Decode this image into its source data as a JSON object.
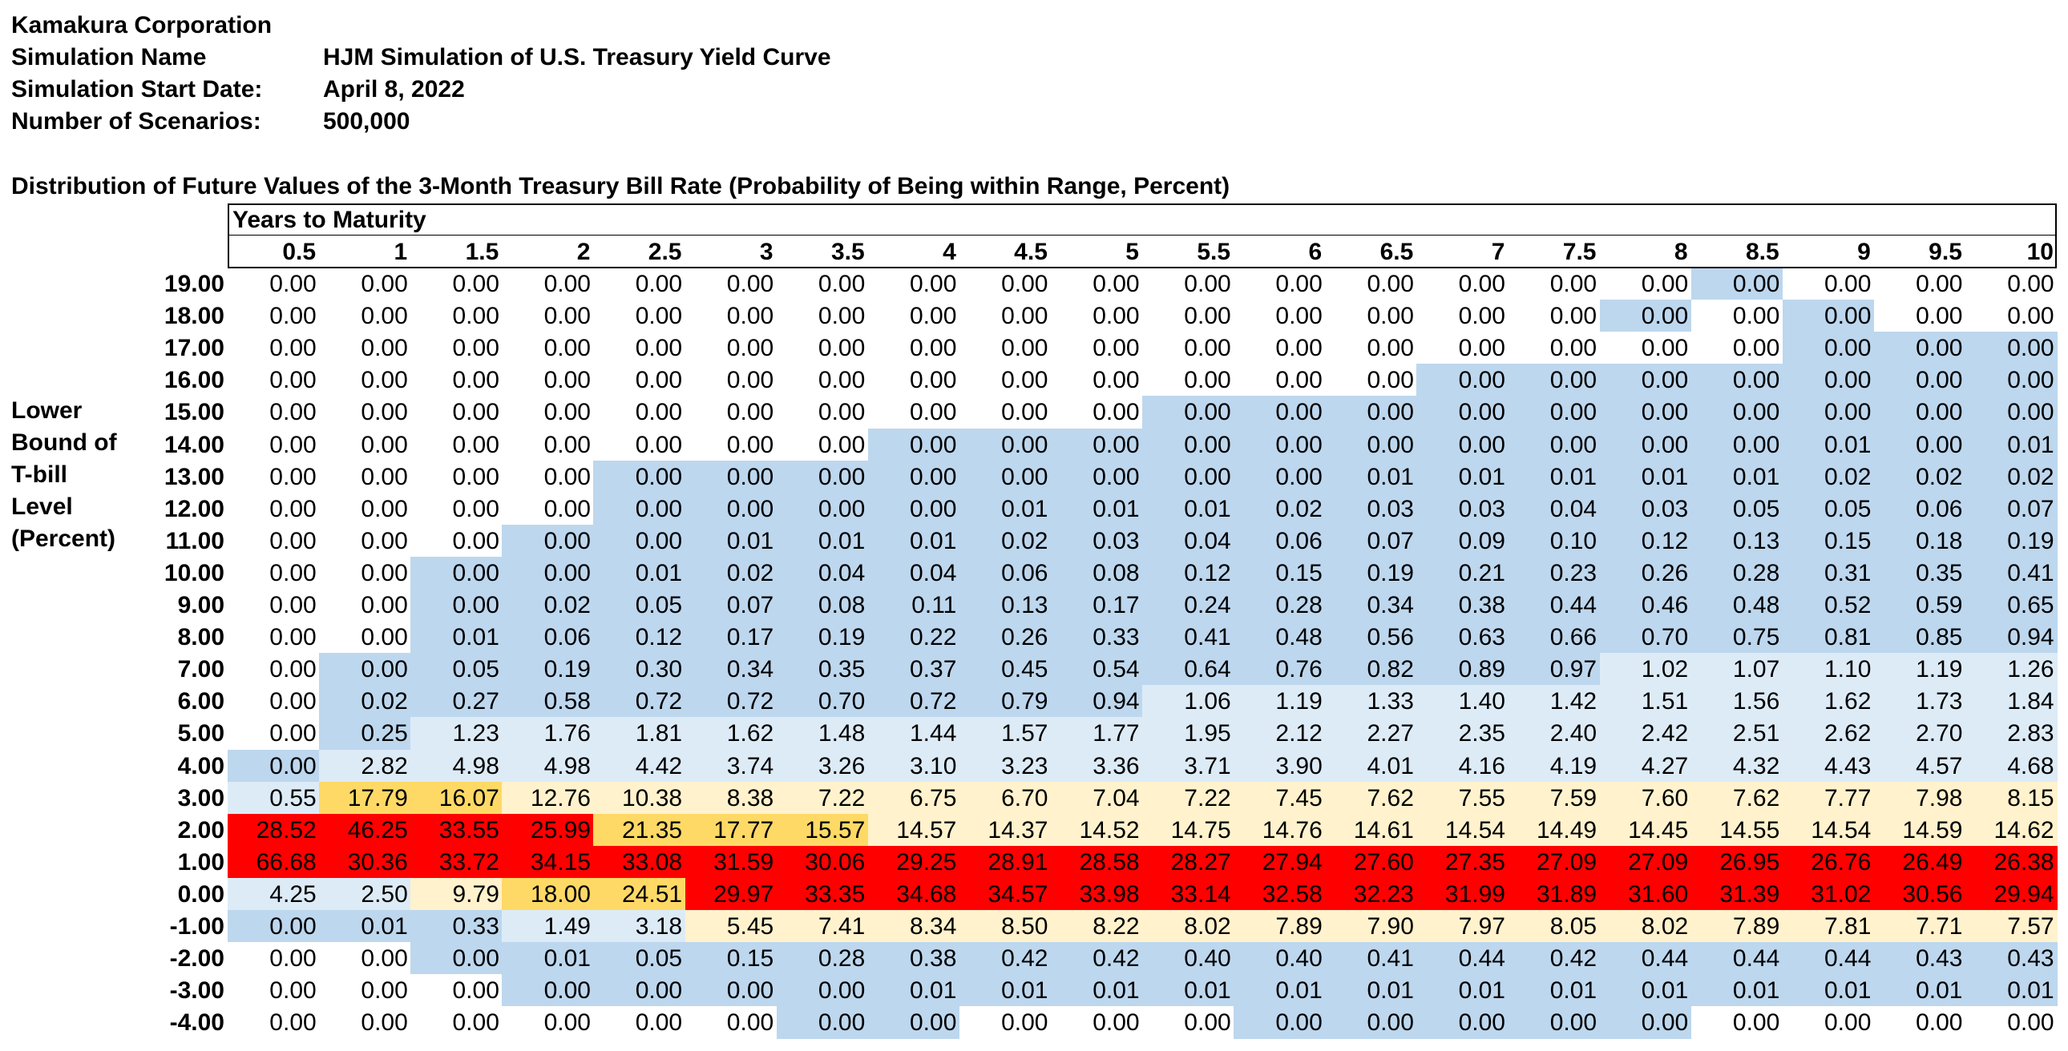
{
  "header": {
    "company": "Kamakura Corporation",
    "sim_name_label": "Simulation Name",
    "sim_name": "HJM Simulation of U.S. Treasury Yield Curve",
    "start_label": "Simulation Start Date:",
    "start_date": "April 8, 2022",
    "scen_label": "Number of Scenarios:",
    "scenarios": "500,000"
  },
  "table_title": "Distribution of Future Values of the 3-Month Treasury Bill Rate (Probability of Being within Range, Percent)",
  "years_label": "Years to Maturity",
  "row_axis_label": [
    "Lower",
    "Bound of",
    "T-bill",
    "Level",
    "(Percent)"
  ],
  "colors": {
    "none": "#ffffff",
    "blue": "#bdd7ee",
    "lightblue": "#ddebf7",
    "cream": "#fff2cc",
    "gold": "#ffd966",
    "red": "#ff0000"
  },
  "columns": [
    "0.5",
    "1",
    "1.5",
    "2",
    "2.5",
    "3",
    "3.5",
    "4",
    "4.5",
    "5",
    "5.5",
    "6",
    "6.5",
    "7",
    "7.5",
    "8",
    "8.5",
    "9",
    "9.5",
    "10"
  ],
  "rows": [
    {
      "label": "19.00",
      "values": [
        "0.00",
        "0.00",
        "0.00",
        "0.00",
        "0.00",
        "0.00",
        "0.00",
        "0.00",
        "0.00",
        "0.00",
        "0.00",
        "0.00",
        "0.00",
        "0.00",
        "0.00",
        "0.00",
        "0.00",
        "0.00",
        "0.00",
        "0.00"
      ],
      "shade": [
        "W",
        "W",
        "W",
        "W",
        "W",
        "W",
        "W",
        "W",
        "W",
        "W",
        "W",
        "W",
        "W",
        "W",
        "W",
        "W",
        "B",
        "W",
        "W",
        "W"
      ]
    },
    {
      "label": "18.00",
      "values": [
        "0.00",
        "0.00",
        "0.00",
        "0.00",
        "0.00",
        "0.00",
        "0.00",
        "0.00",
        "0.00",
        "0.00",
        "0.00",
        "0.00",
        "0.00",
        "0.00",
        "0.00",
        "0.00",
        "0.00",
        "0.00",
        "0.00",
        "0.00"
      ],
      "shade": [
        "W",
        "W",
        "W",
        "W",
        "W",
        "W",
        "W",
        "W",
        "W",
        "W",
        "W",
        "W",
        "W",
        "W",
        "W",
        "B",
        "W",
        "B",
        "W",
        "W"
      ]
    },
    {
      "label": "17.00",
      "values": [
        "0.00",
        "0.00",
        "0.00",
        "0.00",
        "0.00",
        "0.00",
        "0.00",
        "0.00",
        "0.00",
        "0.00",
        "0.00",
        "0.00",
        "0.00",
        "0.00",
        "0.00",
        "0.00",
        "0.00",
        "0.00",
        "0.00",
        "0.00"
      ],
      "shade": [
        "W",
        "W",
        "W",
        "W",
        "W",
        "W",
        "W",
        "W",
        "W",
        "W",
        "W",
        "W",
        "W",
        "W",
        "W",
        "W",
        "W",
        "B",
        "B",
        "B"
      ]
    },
    {
      "label": "16.00",
      "values": [
        "0.00",
        "0.00",
        "0.00",
        "0.00",
        "0.00",
        "0.00",
        "0.00",
        "0.00",
        "0.00",
        "0.00",
        "0.00",
        "0.00",
        "0.00",
        "0.00",
        "0.00",
        "0.00",
        "0.00",
        "0.00",
        "0.00",
        "0.00"
      ],
      "shade": [
        "W",
        "W",
        "W",
        "W",
        "W",
        "W",
        "W",
        "W",
        "W",
        "W",
        "W",
        "W",
        "W",
        "B",
        "B",
        "B",
        "B",
        "B",
        "B",
        "B"
      ]
    },
    {
      "label": "15.00",
      "values": [
        "0.00",
        "0.00",
        "0.00",
        "0.00",
        "0.00",
        "0.00",
        "0.00",
        "0.00",
        "0.00",
        "0.00",
        "0.00",
        "0.00",
        "0.00",
        "0.00",
        "0.00",
        "0.00",
        "0.00",
        "0.00",
        "0.00",
        "0.00"
      ],
      "shade": [
        "W",
        "W",
        "W",
        "W",
        "W",
        "W",
        "W",
        "W",
        "W",
        "W",
        "B",
        "B",
        "B",
        "B",
        "B",
        "B",
        "B",
        "B",
        "B",
        "B"
      ]
    },
    {
      "label": "14.00",
      "values": [
        "0.00",
        "0.00",
        "0.00",
        "0.00",
        "0.00",
        "0.00",
        "0.00",
        "0.00",
        "0.00",
        "0.00",
        "0.00",
        "0.00",
        "0.00",
        "0.00",
        "0.00",
        "0.00",
        "0.00",
        "0.01",
        "0.00",
        "0.01"
      ],
      "shade": [
        "W",
        "W",
        "W",
        "W",
        "W",
        "W",
        "W",
        "B",
        "B",
        "B",
        "B",
        "B",
        "B",
        "B",
        "B",
        "B",
        "B",
        "B",
        "B",
        "B"
      ]
    },
    {
      "label": "13.00",
      "values": [
        "0.00",
        "0.00",
        "0.00",
        "0.00",
        "0.00",
        "0.00",
        "0.00",
        "0.00",
        "0.00",
        "0.00",
        "0.00",
        "0.00",
        "0.01",
        "0.01",
        "0.01",
        "0.01",
        "0.01",
        "0.02",
        "0.02",
        "0.02"
      ],
      "shade": [
        "W",
        "W",
        "W",
        "W",
        "B",
        "B",
        "B",
        "B",
        "B",
        "B",
        "B",
        "B",
        "B",
        "B",
        "B",
        "B",
        "B",
        "B",
        "B",
        "B"
      ]
    },
    {
      "label": "12.00",
      "values": [
        "0.00",
        "0.00",
        "0.00",
        "0.00",
        "0.00",
        "0.00",
        "0.00",
        "0.00",
        "0.01",
        "0.01",
        "0.01",
        "0.02",
        "0.03",
        "0.03",
        "0.04",
        "0.03",
        "0.05",
        "0.05",
        "0.06",
        "0.07"
      ],
      "shade": [
        "W",
        "W",
        "W",
        "W",
        "B",
        "B",
        "B",
        "B",
        "B",
        "B",
        "B",
        "B",
        "B",
        "B",
        "B",
        "B",
        "B",
        "B",
        "B",
        "B"
      ]
    },
    {
      "label": "11.00",
      "values": [
        "0.00",
        "0.00",
        "0.00",
        "0.00",
        "0.00",
        "0.01",
        "0.01",
        "0.01",
        "0.02",
        "0.03",
        "0.04",
        "0.06",
        "0.07",
        "0.09",
        "0.10",
        "0.12",
        "0.13",
        "0.15",
        "0.18",
        "0.19"
      ],
      "shade": [
        "W",
        "W",
        "W",
        "B",
        "B",
        "B",
        "B",
        "B",
        "B",
        "B",
        "B",
        "B",
        "B",
        "B",
        "B",
        "B",
        "B",
        "B",
        "B",
        "B"
      ]
    },
    {
      "label": "10.00",
      "values": [
        "0.00",
        "0.00",
        "0.00",
        "0.00",
        "0.01",
        "0.02",
        "0.04",
        "0.04",
        "0.06",
        "0.08",
        "0.12",
        "0.15",
        "0.19",
        "0.21",
        "0.23",
        "0.26",
        "0.28",
        "0.31",
        "0.35",
        "0.41"
      ],
      "shade": [
        "W",
        "W",
        "B",
        "B",
        "B",
        "B",
        "B",
        "B",
        "B",
        "B",
        "B",
        "B",
        "B",
        "B",
        "B",
        "B",
        "B",
        "B",
        "B",
        "B"
      ]
    },
    {
      "label": "9.00",
      "values": [
        "0.00",
        "0.00",
        "0.00",
        "0.02",
        "0.05",
        "0.07",
        "0.08",
        "0.11",
        "0.13",
        "0.17",
        "0.24",
        "0.28",
        "0.34",
        "0.38",
        "0.44",
        "0.46",
        "0.48",
        "0.52",
        "0.59",
        "0.65"
      ],
      "shade": [
        "W",
        "W",
        "B",
        "B",
        "B",
        "B",
        "B",
        "B",
        "B",
        "B",
        "B",
        "B",
        "B",
        "B",
        "B",
        "B",
        "B",
        "B",
        "B",
        "B"
      ]
    },
    {
      "label": "8.00",
      "values": [
        "0.00",
        "0.00",
        "0.01",
        "0.06",
        "0.12",
        "0.17",
        "0.19",
        "0.22",
        "0.26",
        "0.33",
        "0.41",
        "0.48",
        "0.56",
        "0.63",
        "0.66",
        "0.70",
        "0.75",
        "0.81",
        "0.85",
        "0.94"
      ],
      "shade": [
        "W",
        "W",
        "B",
        "B",
        "B",
        "B",
        "B",
        "B",
        "B",
        "B",
        "B",
        "B",
        "B",
        "B",
        "B",
        "B",
        "B",
        "B",
        "B",
        "B"
      ]
    },
    {
      "label": "7.00",
      "values": [
        "0.00",
        "0.00",
        "0.05",
        "0.19",
        "0.30",
        "0.34",
        "0.35",
        "0.37",
        "0.45",
        "0.54",
        "0.64",
        "0.76",
        "0.82",
        "0.89",
        "0.97",
        "1.02",
        "1.07",
        "1.10",
        "1.19",
        "1.26"
      ],
      "shade": [
        "W",
        "B",
        "B",
        "B",
        "B",
        "B",
        "B",
        "B",
        "B",
        "B",
        "B",
        "B",
        "B",
        "B",
        "B",
        "L",
        "L",
        "L",
        "L",
        "L"
      ]
    },
    {
      "label": "6.00",
      "values": [
        "0.00",
        "0.02",
        "0.27",
        "0.58",
        "0.72",
        "0.72",
        "0.70",
        "0.72",
        "0.79",
        "0.94",
        "1.06",
        "1.19",
        "1.33",
        "1.40",
        "1.42",
        "1.51",
        "1.56",
        "1.62",
        "1.73",
        "1.84"
      ],
      "shade": [
        "W",
        "B",
        "B",
        "B",
        "B",
        "B",
        "B",
        "B",
        "B",
        "B",
        "L",
        "L",
        "L",
        "L",
        "L",
        "L",
        "L",
        "L",
        "L",
        "L"
      ]
    },
    {
      "label": "5.00",
      "values": [
        "0.00",
        "0.25",
        "1.23",
        "1.76",
        "1.81",
        "1.62",
        "1.48",
        "1.44",
        "1.57",
        "1.77",
        "1.95",
        "2.12",
        "2.27",
        "2.35",
        "2.40",
        "2.42",
        "2.51",
        "2.62",
        "2.70",
        "2.83"
      ],
      "shade": [
        "W",
        "B",
        "L",
        "L",
        "L",
        "L",
        "L",
        "L",
        "L",
        "L",
        "L",
        "L",
        "L",
        "L",
        "L",
        "L",
        "L",
        "L",
        "L",
        "L"
      ]
    },
    {
      "label": "4.00",
      "values": [
        "0.00",
        "2.82",
        "4.98",
        "4.98",
        "4.42",
        "3.74",
        "3.26",
        "3.10",
        "3.23",
        "3.36",
        "3.71",
        "3.90",
        "4.01",
        "4.16",
        "4.19",
        "4.27",
        "4.32",
        "4.43",
        "4.57",
        "4.68"
      ],
      "shade": [
        "B",
        "L",
        "L",
        "L",
        "L",
        "L",
        "L",
        "L",
        "L",
        "L",
        "L",
        "L",
        "L",
        "L",
        "L",
        "L",
        "L",
        "L",
        "L",
        "L"
      ]
    },
    {
      "label": "3.00",
      "values": [
        "0.55",
        "17.79",
        "16.07",
        "12.76",
        "10.38",
        "8.38",
        "7.22",
        "6.75",
        "6.70",
        "7.04",
        "7.22",
        "7.45",
        "7.62",
        "7.55",
        "7.59",
        "7.60",
        "7.62",
        "7.77",
        "7.98",
        "8.15"
      ],
      "shade": [
        "L",
        "G",
        "G",
        "C",
        "C",
        "C",
        "C",
        "C",
        "C",
        "C",
        "C",
        "C",
        "C",
        "C",
        "C",
        "C",
        "C",
        "C",
        "C",
        "C"
      ]
    },
    {
      "label": "2.00",
      "values": [
        "28.52",
        "46.25",
        "33.55",
        "25.99",
        "21.35",
        "17.77",
        "15.57",
        "14.57",
        "14.37",
        "14.52",
        "14.75",
        "14.76",
        "14.61",
        "14.54",
        "14.49",
        "14.45",
        "14.55",
        "14.54",
        "14.59",
        "14.62"
      ],
      "shade": [
        "R",
        "R",
        "R",
        "R",
        "G",
        "G",
        "G",
        "C",
        "C",
        "C",
        "C",
        "C",
        "C",
        "C",
        "C",
        "C",
        "C",
        "C",
        "C",
        "C"
      ]
    },
    {
      "label": "1.00",
      "values": [
        "66.68",
        "30.36",
        "33.72",
        "34.15",
        "33.08",
        "31.59",
        "30.06",
        "29.25",
        "28.91",
        "28.58",
        "28.27",
        "27.94",
        "27.60",
        "27.35",
        "27.09",
        "27.09",
        "26.95",
        "26.76",
        "26.49",
        "26.38"
      ],
      "shade": [
        "R",
        "R",
        "R",
        "R",
        "R",
        "R",
        "R",
        "R",
        "R",
        "R",
        "R",
        "R",
        "R",
        "R",
        "R",
        "R",
        "R",
        "R",
        "R",
        "R"
      ]
    },
    {
      "label": "0.00",
      "values": [
        "4.25",
        "2.50",
        "9.79",
        "18.00",
        "24.51",
        "29.97",
        "33.35",
        "34.68",
        "34.57",
        "33.98",
        "33.14",
        "32.58",
        "32.23",
        "31.99",
        "31.89",
        "31.60",
        "31.39",
        "31.02",
        "30.56",
        "29.94"
      ],
      "shade": [
        "L",
        "L",
        "C",
        "G",
        "G",
        "R",
        "R",
        "R",
        "R",
        "R",
        "R",
        "R",
        "R",
        "R",
        "R",
        "R",
        "R",
        "R",
        "R",
        "R"
      ]
    },
    {
      "label": "-1.00",
      "values": [
        "0.00",
        "0.01",
        "0.33",
        "1.49",
        "3.18",
        "5.45",
        "7.41",
        "8.34",
        "8.50",
        "8.22",
        "8.02",
        "7.89",
        "7.90",
        "7.97",
        "8.05",
        "8.02",
        "7.89",
        "7.81",
        "7.71",
        "7.57"
      ],
      "shade": [
        "B",
        "B",
        "B",
        "L",
        "L",
        "C",
        "C",
        "C",
        "C",
        "C",
        "C",
        "C",
        "C",
        "C",
        "C",
        "C",
        "C",
        "C",
        "C",
        "C"
      ]
    },
    {
      "label": "-2.00",
      "values": [
        "0.00",
        "0.00",
        "0.00",
        "0.01",
        "0.05",
        "0.15",
        "0.28",
        "0.38",
        "0.42",
        "0.42",
        "0.40",
        "0.40",
        "0.41",
        "0.44",
        "0.42",
        "0.44",
        "0.44",
        "0.44",
        "0.43",
        "0.43"
      ],
      "shade": [
        "W",
        "W",
        "B",
        "B",
        "B",
        "B",
        "B",
        "B",
        "B",
        "B",
        "B",
        "B",
        "B",
        "B",
        "B",
        "B",
        "B",
        "B",
        "B",
        "B"
      ]
    },
    {
      "label": "-3.00",
      "values": [
        "0.00",
        "0.00",
        "0.00",
        "0.00",
        "0.00",
        "0.00",
        "0.00",
        "0.01",
        "0.01",
        "0.01",
        "0.01",
        "0.01",
        "0.01",
        "0.01",
        "0.01",
        "0.01",
        "0.01",
        "0.01",
        "0.01",
        "0.01"
      ],
      "shade": [
        "W",
        "W",
        "W",
        "B",
        "B",
        "B",
        "B",
        "B",
        "B",
        "B",
        "B",
        "B",
        "B",
        "B",
        "B",
        "B",
        "B",
        "B",
        "B",
        "B"
      ]
    },
    {
      "label": "-4.00",
      "values": [
        "0.00",
        "0.00",
        "0.00",
        "0.00",
        "0.00",
        "0.00",
        "0.00",
        "0.00",
        "0.00",
        "0.00",
        "0.00",
        "0.00",
        "0.00",
        "0.00",
        "0.00",
        "0.00",
        "0.00",
        "0.00",
        "0.00",
        "0.00"
      ],
      "shade": [
        "W",
        "W",
        "W",
        "W",
        "W",
        "W",
        "B",
        "B",
        "W",
        "W",
        "W",
        "B",
        "B",
        "B",
        "B",
        "B",
        "W",
        "W",
        "W",
        "W"
      ]
    }
  ]
}
